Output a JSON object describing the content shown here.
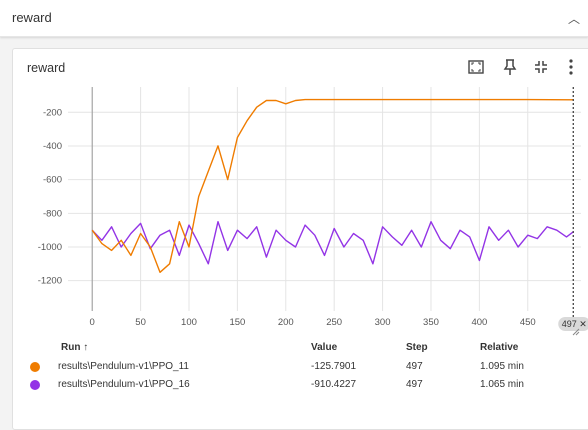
{
  "section_title": "reward",
  "card_title": "reward",
  "toolbar": {
    "fit_icon": "fit-domain-icon",
    "pin_icon": "pin-icon",
    "collapse_icon": "collapse-icon",
    "more_icon": "more-vert-icon"
  },
  "step_badge": "497 ✕",
  "colors": {
    "orange": "#ef7c00",
    "purple": "#9334e6"
  },
  "table": {
    "headers": {
      "run": "Run ↑",
      "value": "Value",
      "step": "Step",
      "relative": "Relative"
    },
    "rows": [
      {
        "run": "results\\Pendulum-v1\\PPO_11",
        "value": "-125.7901",
        "step": "497",
        "relative": "1.095 min",
        "color": "#ef7c00"
      },
      {
        "run": "results\\Pendulum-v1\\PPO_16",
        "value": "-910.4227",
        "step": "497",
        "relative": "1.065 min",
        "color": "#9334e6"
      }
    ]
  },
  "chart_data": {
    "type": "line",
    "title": "",
    "xlabel": "",
    "ylabel": "",
    "xlim": [
      -25,
      505
    ],
    "ylim": [
      -1380,
      -50
    ],
    "x_ticks": [
      0,
      50,
      100,
      150,
      200,
      250,
      300,
      350,
      400,
      450
    ],
    "y_ticks": [
      -200,
      -400,
      -600,
      -800,
      -1000,
      -1200
    ],
    "grid": true,
    "series": [
      {
        "name": "results\\Pendulum-v1\\PPO_11",
        "x": [
          0,
          10,
          20,
          30,
          40,
          50,
          60,
          70,
          80,
          90,
          100,
          110,
          120,
          130,
          140,
          150,
          160,
          170,
          180,
          190,
          200,
          210,
          220,
          240,
          260,
          300,
          350,
          400,
          450,
          497
        ],
        "y": [
          -900,
          -980,
          -1020,
          -960,
          -1050,
          -920,
          -1000,
          -1150,
          -1100,
          -850,
          -1000,
          -700,
          -550,
          -400,
          -600,
          -350,
          -250,
          -170,
          -130,
          -130,
          -150,
          -130,
          -125,
          -125,
          -125,
          -125,
          -125,
          -125,
          -125,
          -126
        ]
      },
      {
        "name": "results\\Pendulum-v1\\PPO_16",
        "x": [
          0,
          10,
          20,
          30,
          40,
          50,
          60,
          70,
          80,
          90,
          100,
          110,
          120,
          130,
          140,
          150,
          160,
          170,
          180,
          190,
          200,
          210,
          220,
          230,
          240,
          250,
          260,
          270,
          280,
          290,
          300,
          310,
          320,
          330,
          340,
          350,
          360,
          370,
          380,
          390,
          400,
          410,
          420,
          430,
          440,
          450,
          460,
          470,
          480,
          490,
          497
        ],
        "y": [
          -900,
          -960,
          -880,
          -1000,
          -920,
          -860,
          -1010,
          -930,
          -900,
          -1050,
          -870,
          -980,
          -1100,
          -850,
          -1020,
          -900,
          -950,
          -880,
          -1060,
          -900,
          -960,
          -1000,
          -870,
          -930,
          -1050,
          -890,
          -1000,
          -920,
          -960,
          -1100,
          -880,
          -940,
          -990,
          -900,
          -1000,
          -850,
          -960,
          -1010,
          -900,
          -940,
          -1080,
          -880,
          -960,
          -900,
          -1000,
          -930,
          -950,
          -880,
          -900,
          -940,
          -910
        ]
      }
    ]
  }
}
